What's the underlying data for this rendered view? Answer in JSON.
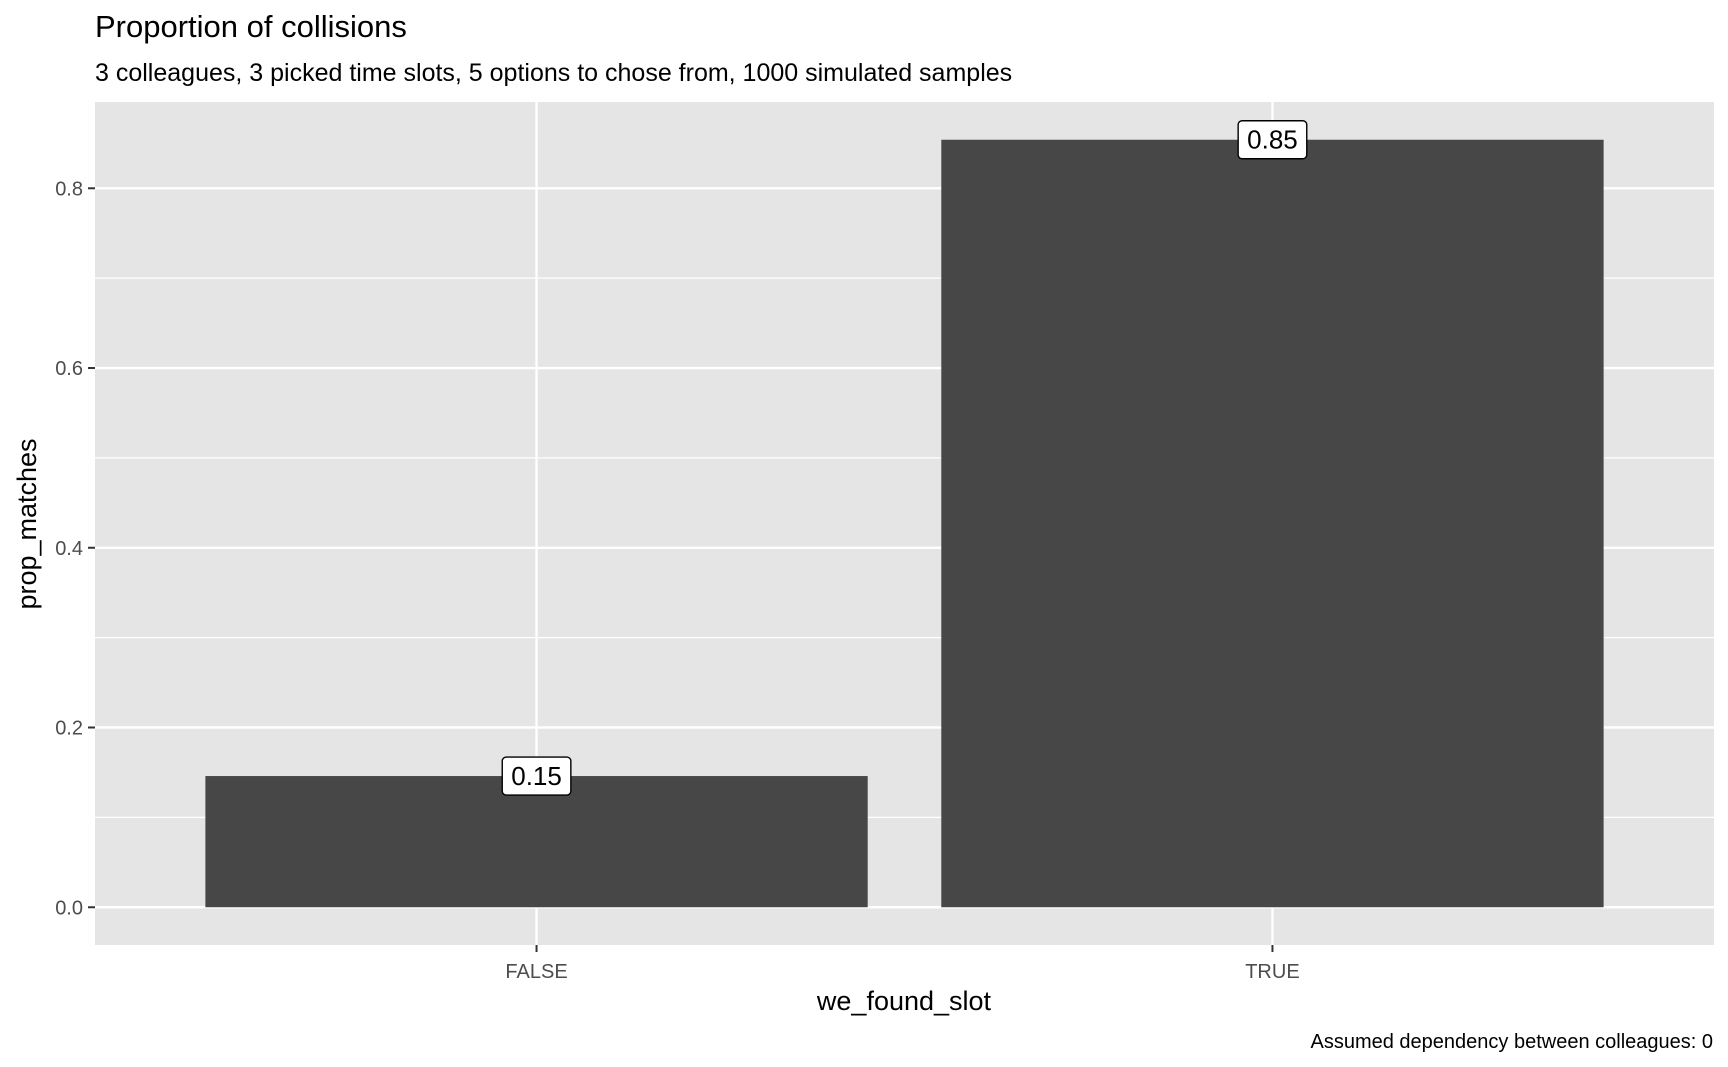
{
  "chart_data": {
    "type": "bar",
    "title": "Proportion of collisions",
    "subtitle": "3 colleagues, 3 picked time slots, 5 options to chose from, 1000 simulated samples",
    "caption": "Assumed dependency between colleagues: 0",
    "xlabel": "we_found_slot",
    "ylabel": "prop_matches",
    "categories": [
      "FALSE",
      "TRUE"
    ],
    "values": [
      0.146,
      0.854
    ],
    "data_labels": [
      "0.15",
      "0.85"
    ],
    "ylim": [
      -0.042,
      0.896
    ],
    "y_ticks": [
      0.0,
      0.2,
      0.4,
      0.6,
      0.8
    ],
    "y_tick_labels": [
      "0.0",
      "0.2",
      "0.4",
      "0.6",
      "0.8"
    ],
    "grid": true,
    "legend": "none",
    "colors": {
      "bar": "#474747",
      "panel_background": "#e5e5e5",
      "grid": "#ffffff",
      "tick_label": "#4d4d4d"
    }
  }
}
